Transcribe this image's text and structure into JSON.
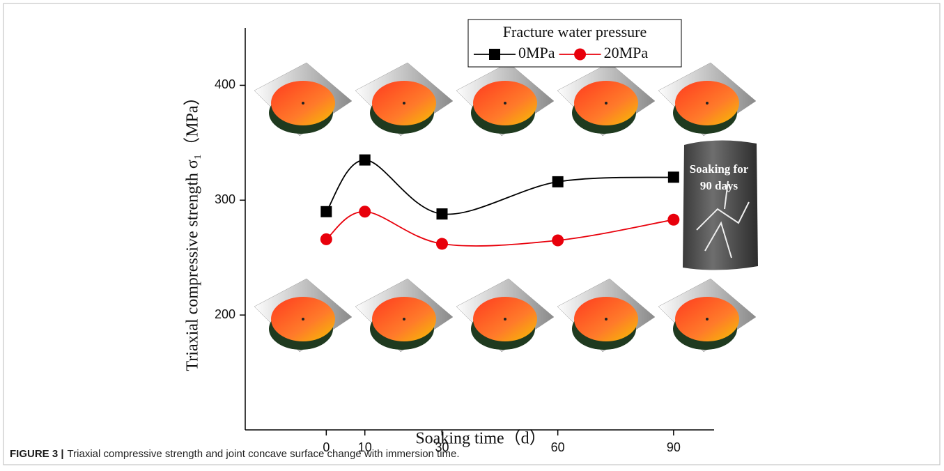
{
  "chart_data": {
    "type": "line",
    "xlabel": "Soaking time（d）",
    "ylabel": "Triaxial compressive strength σ₁（MPa）",
    "legend_title": "Fracture water pressure",
    "legend_loc": "upper center",
    "x": [
      0,
      10,
      30,
      60,
      90
    ],
    "series": [
      {
        "name": "0MPa",
        "color": "#000000",
        "marker": "square",
        "values": [
          290,
          335,
          288,
          316,
          320
        ]
      },
      {
        "name": "20MPa",
        "color": "#e8000b",
        "marker": "circle",
        "values": [
          266,
          290,
          262,
          265,
          283
        ]
      }
    ],
    "xlim": [
      -21,
      100.5
    ],
    "xticks": [
      0,
      10,
      30,
      60,
      90
    ],
    "ylim": [
      100,
      450
    ],
    "yticks": [
      200,
      300,
      400
    ],
    "photo_label": [
      "Soaking for",
      "90 days"
    ]
  },
  "caption": {
    "label": "FIGURE 3 |",
    "text": "Triaxial compressive strength and joint concave surface change with immersion time."
  }
}
